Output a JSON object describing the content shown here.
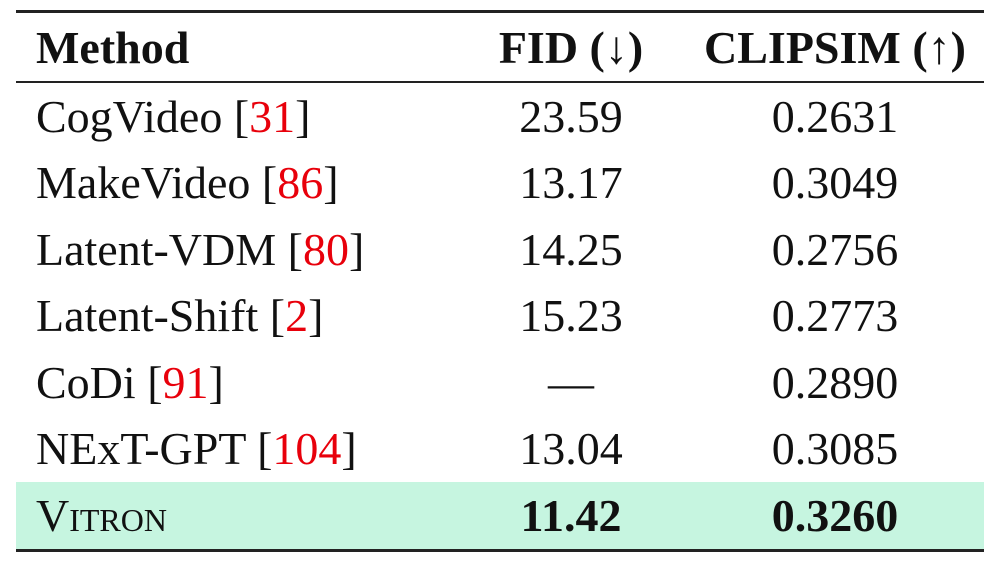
{
  "table": {
    "header": [
      "Method",
      "FID (↓)",
      "CLIPSIM (↑)"
    ],
    "rows": [
      {
        "name": "CogVideo",
        "ref": "31",
        "fid": "23.59",
        "clipsim": "0.2631"
      },
      {
        "name": "MakeVideo",
        "ref": "86",
        "fid": "13.17",
        "clipsim": "0.3049"
      },
      {
        "name": "Latent-VDM",
        "ref": "80",
        "fid": "14.25",
        "clipsim": "0.2756"
      },
      {
        "name": "Latent-Shift",
        "ref": "2",
        "fid": "15.23",
        "clipsim": "0.2773"
      },
      {
        "name": "CoDi",
        "ref": "91",
        "fid": "—",
        "clipsim": "0.2890"
      },
      {
        "name": "NExT-GPT",
        "ref": "104",
        "fid": "13.04",
        "clipsim": "0.3085"
      },
      {
        "name": "Vitron",
        "fid": "11.42",
        "clipsim": "0.3260"
      }
    ]
  }
}
